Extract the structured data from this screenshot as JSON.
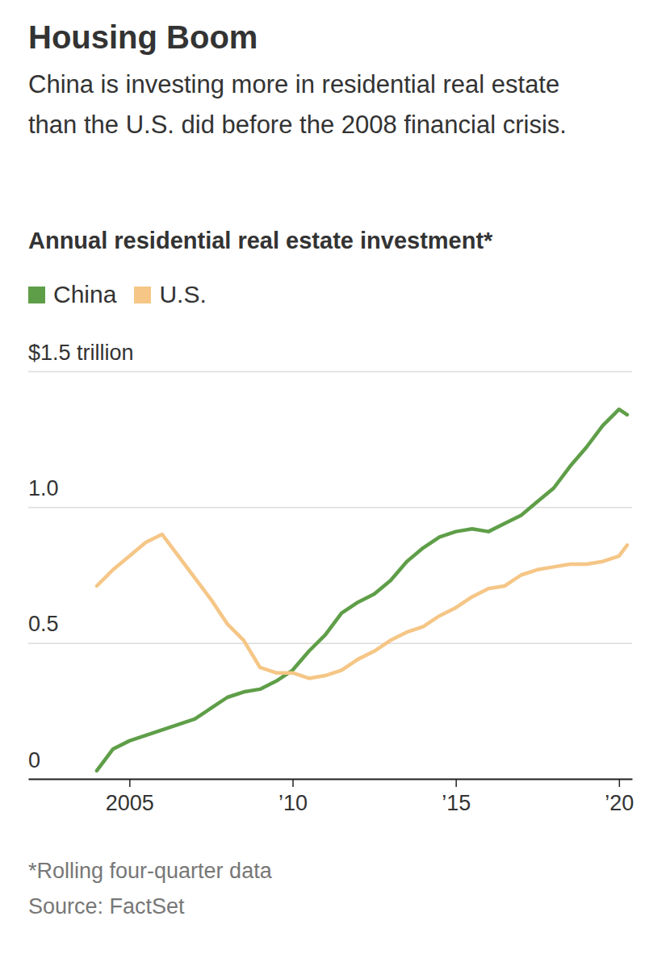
{
  "chart_data": {
    "type": "line",
    "title": "Housing Boom",
    "subtitle": "China is investing more in residential real estate than the U.S. did before the 2008 financial crisis.",
    "y_label": "Annual residential real estate investment*",
    "footnote": "*Rolling four-quarter data",
    "source": "Source: FactSet",
    "x": [
      2004.0,
      2004.5,
      2005.0,
      2005.5,
      2006.0,
      2006.5,
      2007.0,
      2007.5,
      2008.0,
      2008.5,
      2009.0,
      2009.5,
      2010.0,
      2010.5,
      2011.0,
      2011.5,
      2012.0,
      2012.5,
      2013.0,
      2013.5,
      2014.0,
      2014.5,
      2015.0,
      2015.5,
      2016.0,
      2016.5,
      2017.0,
      2017.5,
      2018.0,
      2018.5,
      2019.0,
      2019.5,
      2020.0,
      2020.25
    ],
    "series": [
      {
        "name": "China",
        "color": "#5f9e48",
        "values": [
          0.03,
          0.11,
          0.14,
          0.16,
          0.18,
          0.2,
          0.22,
          0.26,
          0.3,
          0.32,
          0.33,
          0.36,
          0.4,
          0.47,
          0.53,
          0.61,
          0.65,
          0.68,
          0.73,
          0.8,
          0.85,
          0.89,
          0.91,
          0.92,
          0.91,
          0.94,
          0.97,
          1.02,
          1.07,
          1.15,
          1.22,
          1.3,
          1.36,
          1.34
        ]
      },
      {
        "name": "U.S.",
        "color": "#f5c686",
        "values": [
          0.71,
          0.77,
          0.82,
          0.87,
          0.9,
          0.82,
          0.74,
          0.66,
          0.57,
          0.51,
          0.41,
          0.39,
          0.39,
          0.37,
          0.38,
          0.4,
          0.44,
          0.47,
          0.51,
          0.54,
          0.56,
          0.6,
          0.63,
          0.67,
          0.7,
          0.71,
          0.75,
          0.77,
          0.78,
          0.79,
          0.79,
          0.8,
          0.82,
          0.86
        ]
      }
    ],
    "xlim": [
      2001.9,
      2020.4
    ],
    "xticks": [
      {
        "value": 2005,
        "label": "2005"
      },
      {
        "value": 2010,
        "label": "’10"
      },
      {
        "value": 2015,
        "label": "’15"
      },
      {
        "value": 2020,
        "label": "’20"
      }
    ],
    "ylim": [
      0,
      1.5
    ],
    "yticks": [
      0,
      0.5,
      {
        "value": 1,
        "label": "1.0"
      },
      {
        "value": 1.5,
        "label": "$1.5 trillion"
      }
    ],
    "grid": true,
    "legend": "top-left"
  }
}
